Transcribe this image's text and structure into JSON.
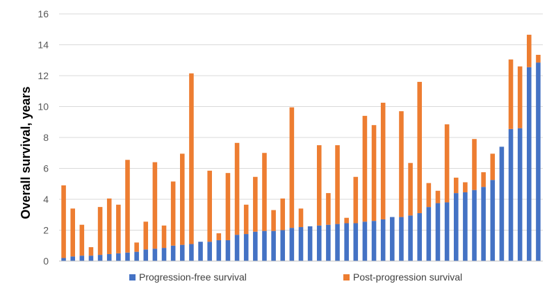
{
  "chart_data": {
    "type": "bar",
    "stacked": true,
    "title": "",
    "xlabel": "",
    "ylabel": "Overall survival, years",
    "ylim": [
      0,
      16
    ],
    "yticks": [
      0,
      2,
      4,
      6,
      8,
      10,
      12,
      14,
      16
    ],
    "grid": true,
    "legend_position": "bottom",
    "series": [
      {
        "name": "Progression-free survival",
        "color": "#4472C4",
        "values": [
          0.2,
          0.3,
          0.35,
          0.35,
          0.4,
          0.45,
          0.5,
          0.55,
          0.6,
          0.75,
          0.8,
          0.85,
          1.0,
          1.05,
          1.1,
          1.25,
          1.25,
          1.35,
          1.35,
          1.7,
          1.75,
          1.9,
          1.95,
          1.95,
          2.0,
          2.15,
          2.2,
          2.25,
          2.3,
          2.35,
          2.4,
          2.45,
          2.45,
          2.55,
          2.6,
          2.7,
          2.85,
          2.85,
          2.95,
          3.1,
          3.5,
          3.75,
          3.8,
          4.4,
          4.45,
          4.6,
          4.8,
          5.25,
          7.4,
          8.55,
          8.6,
          12.55,
          12.85
        ]
      },
      {
        "name": "Post-progression survival",
        "color": "#ED7D31",
        "values": [
          4.7,
          3.1,
          2.0,
          0.55,
          3.1,
          3.6,
          3.15,
          6.0,
          0.6,
          1.8,
          5.6,
          1.45,
          4.15,
          5.9,
          11.05,
          0.0,
          4.6,
          0.45,
          4.35,
          5.95,
          1.9,
          3.55,
          5.05,
          1.35,
          2.05,
          7.8,
          1.2,
          0.0,
          5.2,
          2.05,
          5.1,
          0.35,
          3.0,
          6.85,
          6.2,
          7.55,
          0.0,
          6.85,
          3.4,
          8.5,
          1.55,
          0.8,
          5.05,
          1.0,
          0.65,
          3.3,
          0.95,
          1.7,
          0.0,
          4.5,
          4.0,
          2.1,
          0.5
        ]
      }
    ]
  }
}
